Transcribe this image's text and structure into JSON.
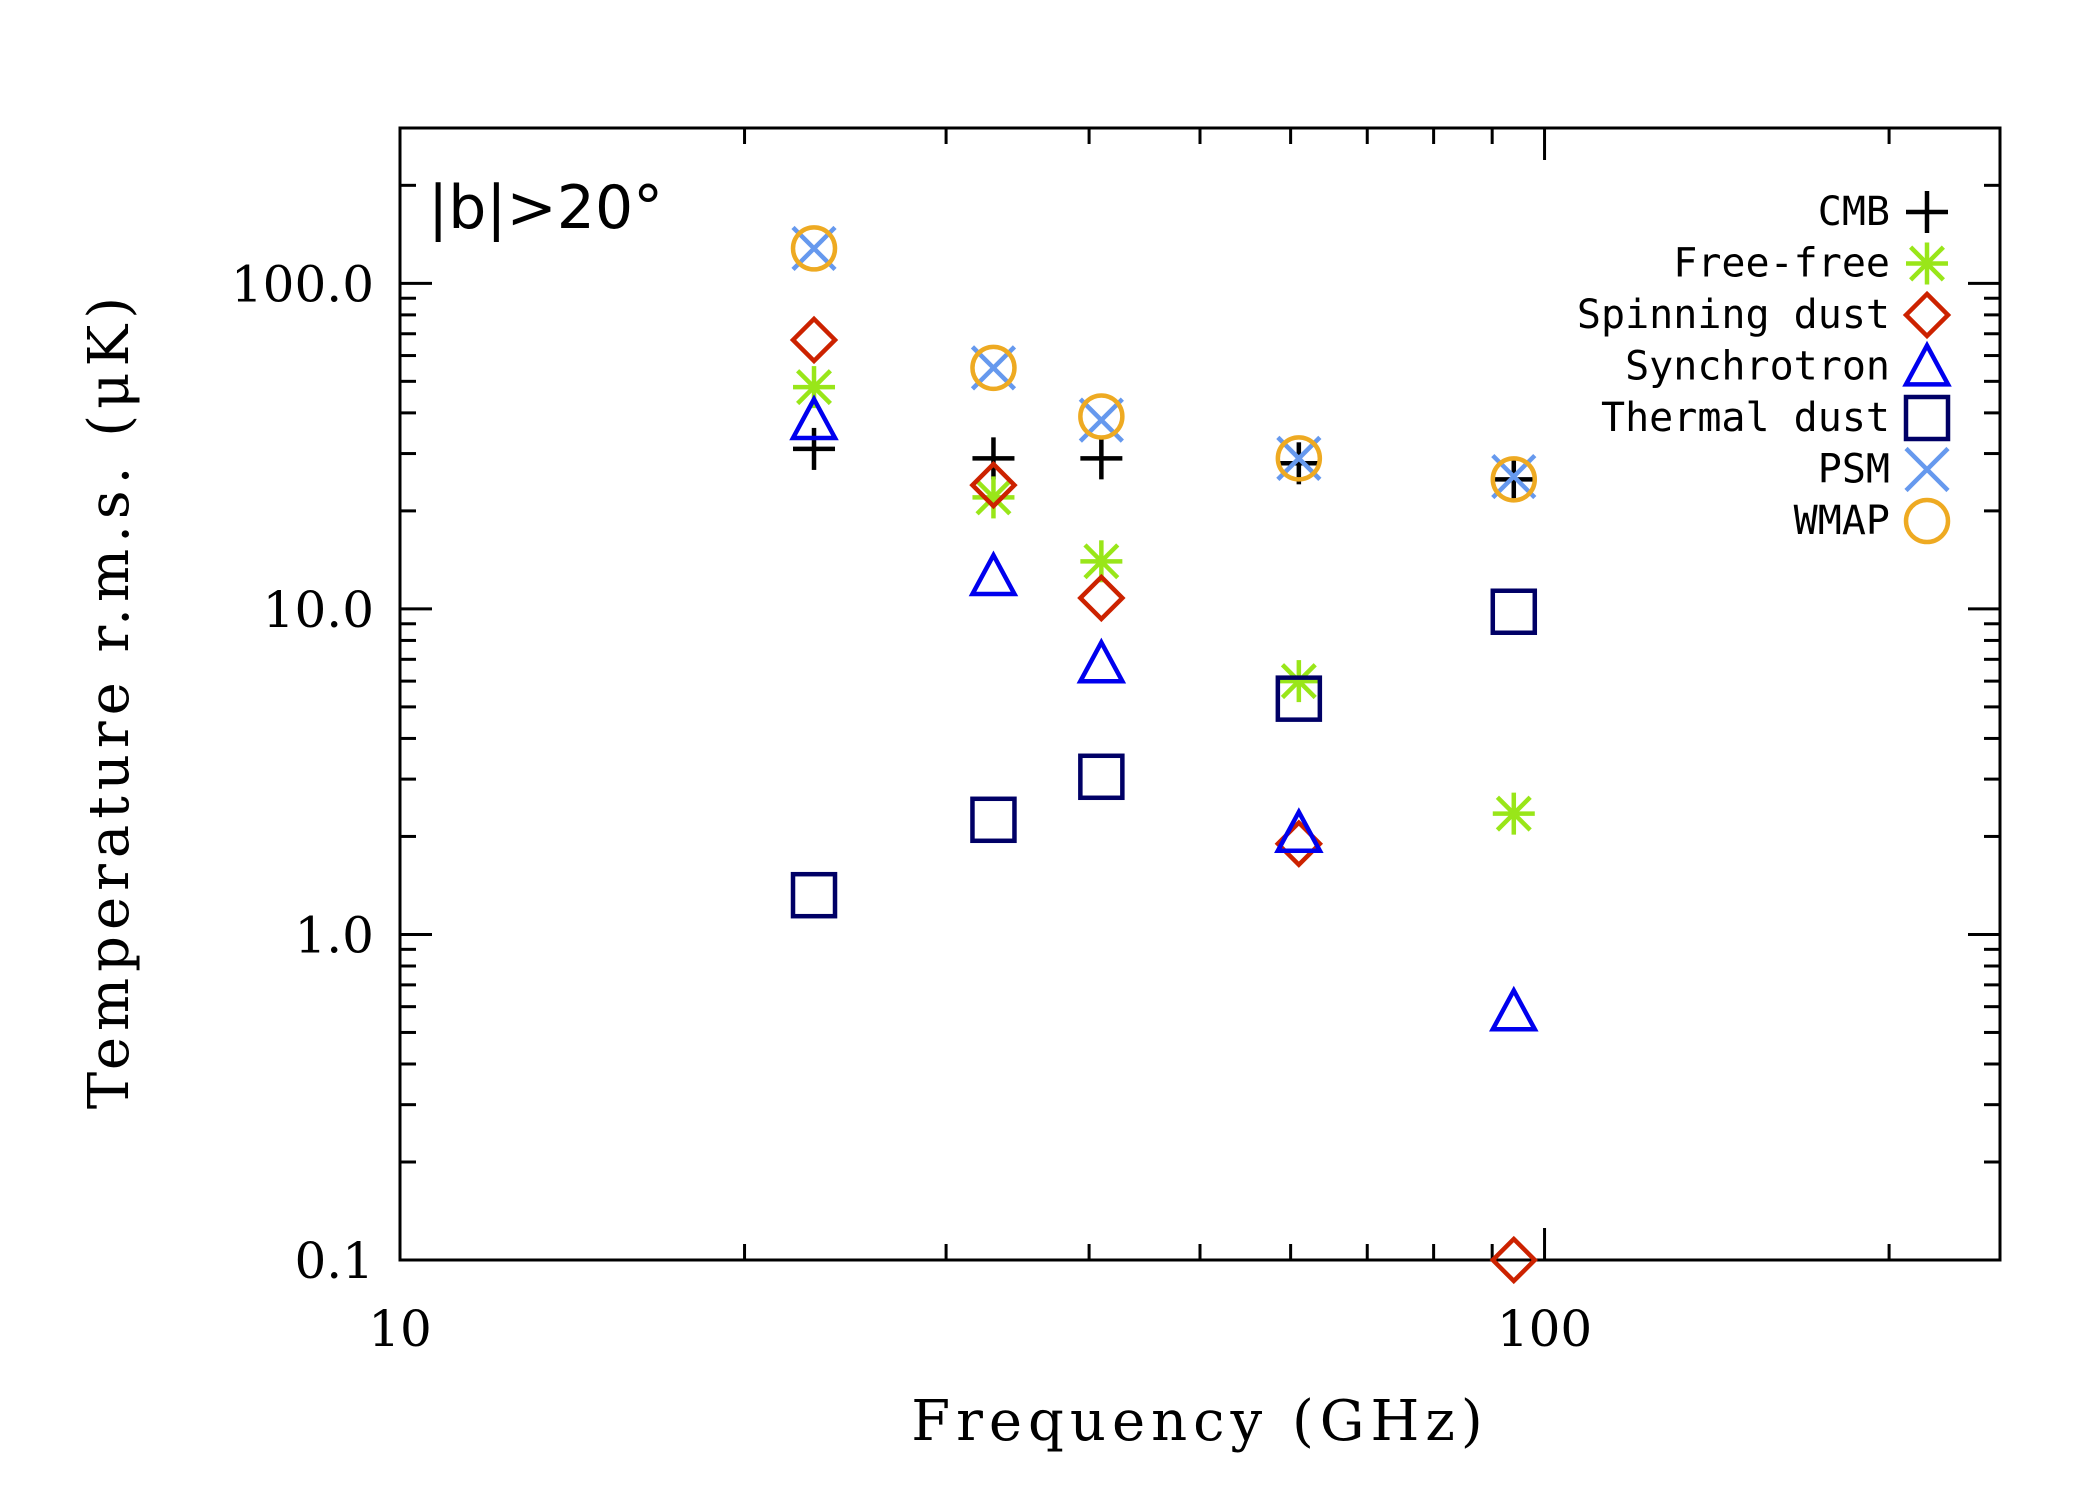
{
  "chart_data": {
    "type": "scatter",
    "title": "",
    "annotation": "|b|>20°",
    "xlabel": "Frequency (GHz)",
    "ylabel": "Temperature r.m.s. (μK)",
    "xscale": "log",
    "yscale": "log",
    "xlim": [
      10,
      250
    ],
    "ylim": [
      0.1,
      300
    ],
    "xticks": [
      10,
      100
    ],
    "xtick_labels": [
      "10",
      "100"
    ],
    "yticks": [
      0.1,
      1.0,
      10.0,
      100.0
    ],
    "ytick_labels": [
      "0.1",
      "1.0",
      "10.0",
      "100.0"
    ],
    "grid": false,
    "legend_position": "top-right",
    "series": [
      {
        "name": "CMB",
        "marker": "plus",
        "color": "#000000",
        "x": [
          23,
          33,
          41,
          61,
          94
        ],
        "y": [
          31,
          29,
          29,
          28,
          25
        ]
      },
      {
        "name": "Free-free",
        "marker": "asterisk",
        "color": "#99e619",
        "x": [
          23,
          33,
          41,
          61,
          94
        ],
        "y": [
          48,
          22,
          14,
          6.0,
          2.35
        ]
      },
      {
        "name": "Spinning dust",
        "marker": "diamond",
        "color": "#cc2200",
        "x": [
          23,
          33,
          41,
          61,
          94
        ],
        "y": [
          67,
          24,
          10.8,
          1.9,
          0.1
        ]
      },
      {
        "name": "Synchrotron",
        "marker": "triangle",
        "color": "#0000ee",
        "x": [
          23,
          33,
          41,
          61,
          94
        ],
        "y": [
          38,
          12.6,
          6.8,
          2.05,
          0.58
        ]
      },
      {
        "name": "Thermal dust",
        "marker": "square",
        "color": "#000066",
        "x": [
          23,
          33,
          41,
          61,
          94
        ],
        "y": [
          1.32,
          2.25,
          3.05,
          5.3,
          9.8
        ]
      },
      {
        "name": "PSM",
        "marker": "x",
        "color": "#6699ee",
        "x": [
          23,
          33,
          41,
          61,
          94
        ],
        "y": [
          128,
          55,
          38,
          29,
          25.5
        ]
      },
      {
        "name": "WMAP",
        "marker": "circle",
        "color": "#eeaa22",
        "x": [
          23,
          33,
          41,
          61,
          94
        ],
        "y": [
          128,
          55,
          39,
          29,
          25
        ]
      }
    ]
  }
}
